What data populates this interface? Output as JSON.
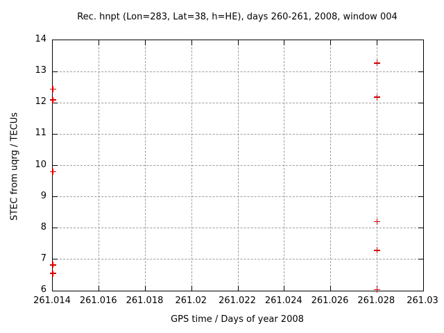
{
  "colors": {
    "background": "#ffffff",
    "axis": "#000000",
    "grid": "#9b9b9b",
    "marker": "#d00000"
  },
  "chart_data": {
    "type": "scatter",
    "title": "Rec. hnpt (Lon=283, Lat=38, h=HE), days 260-261, 2008, window 004",
    "xlabel": "GPS time / Days of year 2008",
    "ylabel": "STEC from uqrg / TECUs",
    "xlim": [
      261.014,
      261.03
    ],
    "ylim": [
      6,
      14
    ],
    "grid": true,
    "legend": "none",
    "marker": {
      "shape": "plus",
      "color": "#d00000",
      "size": 9
    },
    "xticks": [
      {
        "value": 261.014,
        "label": "261.014"
      },
      {
        "value": 261.016,
        "label": "261.016"
      },
      {
        "value": 261.018,
        "label": "261.018"
      },
      {
        "value": 261.02,
        "label": "261.02"
      },
      {
        "value": 261.022,
        "label": "261.022"
      },
      {
        "value": 261.024,
        "label": "261.024"
      },
      {
        "value": 261.026,
        "label": "261.026"
      },
      {
        "value": 261.028,
        "label": "261.028"
      },
      {
        "value": 261.03,
        "label": "261.03"
      }
    ],
    "yticks": [
      {
        "value": 6,
        "label": "6"
      },
      {
        "value": 7,
        "label": "7"
      },
      {
        "value": 8,
        "label": "8"
      },
      {
        "value": 9,
        "label": "9"
      },
      {
        "value": 10,
        "label": "10"
      },
      {
        "value": 11,
        "label": "11"
      },
      {
        "value": 12,
        "label": "12"
      },
      {
        "value": 13,
        "label": "13"
      },
      {
        "value": 14,
        "label": "14"
      }
    ],
    "series": [
      {
        "name": "STEC from uqrg",
        "points": [
          [
            261.014,
            12.44
          ],
          [
            261.014,
            12.09
          ],
          [
            261.014,
            9.8
          ],
          [
            261.014,
            6.82
          ],
          [
            261.014,
            6.55
          ],
          [
            261.028,
            13.27
          ],
          [
            261.028,
            12.18
          ],
          [
            261.028,
            8.2
          ],
          [
            261.028,
            7.29
          ],
          [
            261.028,
            6.03
          ]
        ]
      }
    ]
  }
}
